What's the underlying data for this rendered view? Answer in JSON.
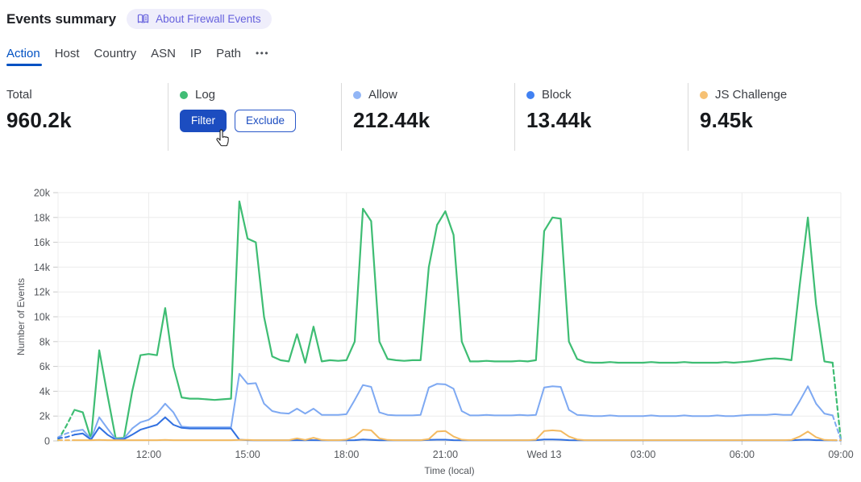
{
  "header": {
    "title": "Events summary",
    "about_badge": "About Firewall Events"
  },
  "tabs": {
    "items": [
      {
        "label": "Action",
        "active": true
      },
      {
        "label": "Host",
        "active": false
      },
      {
        "label": "Country",
        "active": false
      },
      {
        "label": "ASN",
        "active": false
      },
      {
        "label": "IP",
        "active": false
      },
      {
        "label": "Path",
        "active": false
      },
      {
        "label": "•••",
        "active": false
      }
    ]
  },
  "stats": {
    "cards": [
      {
        "label": "Total",
        "value": "960.2k"
      },
      {
        "label": "Log",
        "dot_color": "#41bd76",
        "actions": {
          "filter": "Filter",
          "exclude": "Exclude"
        }
      },
      {
        "label": "Allow",
        "dot_color": "#92b6f6",
        "value": "212.44k"
      },
      {
        "label": "Block",
        "dot_color": "#4181f2",
        "value": "13.44k"
      },
      {
        "label": "JS Challenge",
        "dot_color": "#f6c174",
        "value": "9.45k"
      }
    ]
  },
  "chart_data": {
    "type": "line",
    "xlabel": "Time (local)",
    "ylabel": "Number of Events",
    "ylim": [
      0,
      20000
    ],
    "y_ticks": [
      "0",
      "2k",
      "4k",
      "6k",
      "8k",
      "10k",
      "12k",
      "14k",
      "16k",
      "18k",
      "20k"
    ],
    "x_start": "09:15",
    "x_step_minutes": 15,
    "x_tick_labels": [
      "12:00",
      "15:00",
      "18:00",
      "21:00",
      "Wed 13",
      "03:00",
      "06:00",
      "09:00"
    ],
    "x_tick_indices": [
      11,
      23,
      35,
      47,
      59,
      71,
      83,
      95
    ],
    "grid": true,
    "legend_position": "stat-cards-above",
    "dashed_head_until_index": 2,
    "dashed_tail_from_index": 94,
    "series": [
      {
        "name": "Log",
        "color": "#3ebd73",
        "values": [
          50,
          1200,
          2500,
          2300,
          150,
          7300,
          3700,
          200,
          250,
          4000,
          6900,
          7000,
          6900,
          10700,
          6000,
          3500,
          3400,
          3400,
          3350,
          3300,
          3350,
          3400,
          19300,
          16300,
          16000,
          10000,
          6800,
          6500,
          6400,
          8600,
          6300,
          9200,
          6400,
          6500,
          6450,
          6500,
          8000,
          18700,
          17700,
          8000,
          6600,
          6500,
          6450,
          6500,
          6500,
          14000,
          17400,
          18500,
          16600,
          8000,
          6400,
          6400,
          6450,
          6400,
          6400,
          6400,
          6450,
          6400,
          6500,
          16900,
          18000,
          17900,
          8000,
          6600,
          6350,
          6300,
          6300,
          6350,
          6300,
          6300,
          6300,
          6300,
          6350,
          6300,
          6300,
          6300,
          6350,
          6300,
          6300,
          6300,
          6300,
          6350,
          6300,
          6350,
          6400,
          6500,
          6600,
          6650,
          6600,
          6500,
          12500,
          18000,
          11000,
          6400,
          6300,
          50
        ]
      },
      {
        "name": "Allow",
        "color": "#7ea9f2",
        "values": [
          300,
          600,
          800,
          900,
          150,
          1900,
          1000,
          150,
          200,
          1000,
          1500,
          1700,
          2200,
          3000,
          2300,
          1150,
          1100,
          1100,
          1100,
          1100,
          1100,
          1100,
          5400,
          4600,
          4650,
          3000,
          2400,
          2250,
          2200,
          2600,
          2200,
          2600,
          2100,
          2100,
          2100,
          2150,
          3300,
          4500,
          4350,
          2300,
          2100,
          2050,
          2050,
          2050,
          2100,
          4300,
          4600,
          4550,
          4200,
          2400,
          2050,
          2050,
          2100,
          2050,
          2050,
          2050,
          2100,
          2050,
          2100,
          4300,
          4400,
          4350,
          2500,
          2100,
          2050,
          2000,
          2000,
          2050,
          2000,
          2000,
          2000,
          2000,
          2050,
          2000,
          2000,
          2000,
          2050,
          2000,
          2000,
          2000,
          2050,
          2000,
          2000,
          2050,
          2100,
          2100,
          2100,
          2150,
          2100,
          2100,
          3200,
          4400,
          3000,
          2200,
          2050,
          100
        ]
      },
      {
        "name": "Block",
        "color": "#3170e0",
        "values": [
          200,
          300,
          500,
          600,
          100,
          1100,
          500,
          100,
          150,
          500,
          900,
          1100,
          1300,
          1900,
          1300,
          1050,
          1000,
          1000,
          1000,
          1000,
          1000,
          1000,
          100,
          60,
          50,
          50,
          50,
          50,
          50,
          60,
          50,
          60,
          50,
          50,
          50,
          50,
          60,
          120,
          80,
          50,
          50,
          50,
          50,
          50,
          50,
          80,
          100,
          100,
          60,
          50,
          50,
          50,
          50,
          50,
          50,
          50,
          50,
          50,
          60,
          120,
          120,
          100,
          60,
          50,
          50,
          50,
          50,
          50,
          50,
          50,
          50,
          50,
          50,
          50,
          50,
          50,
          50,
          50,
          50,
          50,
          50,
          50,
          50,
          50,
          50,
          50,
          50,
          50,
          50,
          50,
          80,
          100,
          60,
          50,
          50,
          30
        ]
      },
      {
        "name": "JS Challenge",
        "color": "#f3ba61",
        "values": [
          60,
          60,
          60,
          60,
          60,
          80,
          60,
          60,
          60,
          60,
          60,
          60,
          60,
          80,
          60,
          60,
          60,
          60,
          60,
          60,
          60,
          60,
          80,
          80,
          60,
          60,
          60,
          60,
          60,
          200,
          80,
          250,
          80,
          60,
          60,
          100,
          350,
          900,
          850,
          200,
          80,
          60,
          60,
          60,
          60,
          150,
          750,
          800,
          350,
          100,
          60,
          60,
          60,
          60,
          60,
          60,
          60,
          60,
          100,
          800,
          850,
          800,
          350,
          120,
          60,
          60,
          60,
          60,
          60,
          60,
          60,
          60,
          60,
          60,
          60,
          60,
          60,
          60,
          60,
          60,
          60,
          60,
          60,
          60,
          60,
          60,
          60,
          60,
          60,
          80,
          350,
          750,
          300,
          80,
          60,
          60
        ]
      }
    ]
  }
}
